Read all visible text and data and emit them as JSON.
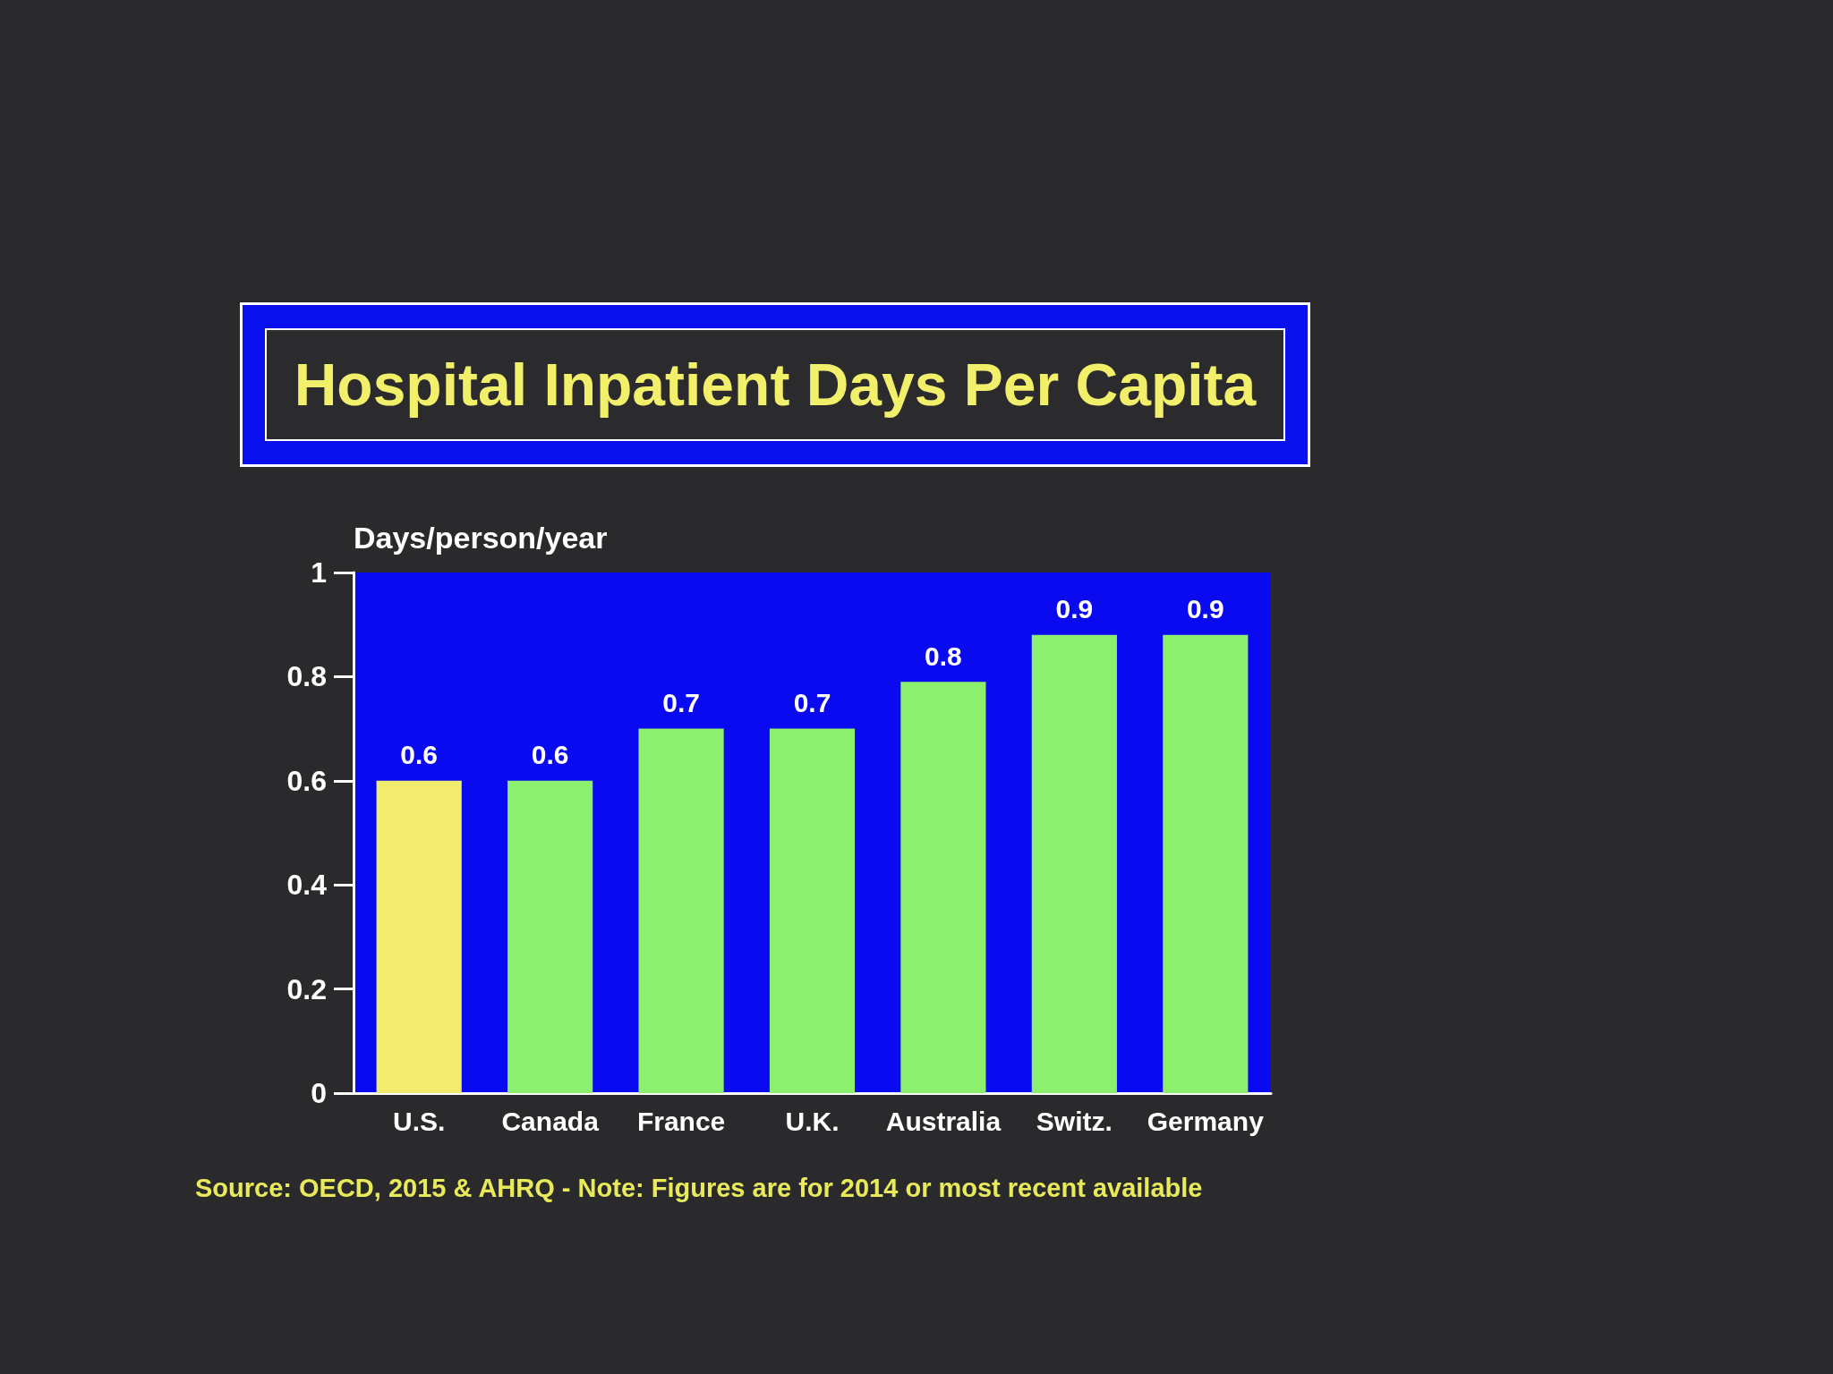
{
  "chart_data": {
    "type": "bar",
    "title": "Hospital Inpatient Days Per Capita",
    "ylabel": "Days/person/year",
    "annotations": [
      "Source: OECD, 2015 & AHRQ - Note: Figures are for 2014 or most recent available"
    ],
    "categories": [
      "U.S.",
      "Canada",
      "France",
      "U.K.",
      "Australia",
      "Switz.",
      "Germany"
    ],
    "values": [
      0.6,
      0.6,
      0.7,
      0.7,
      0.79,
      0.88,
      0.88
    ],
    "value_labels": [
      "0.6",
      "0.6",
      "0.7",
      "0.7",
      "0.8",
      "0.9",
      "0.9"
    ],
    "colors": [
      "#f2ec6e",
      "#8cf06e",
      "#8cf06e",
      "#8cf06e",
      "#8cf06e",
      "#8cf06e",
      "#8cf06e"
    ],
    "ylim": [
      0,
      1
    ],
    "yticks": [
      0,
      0.2,
      0.4,
      0.6,
      0.8,
      1
    ]
  }
}
